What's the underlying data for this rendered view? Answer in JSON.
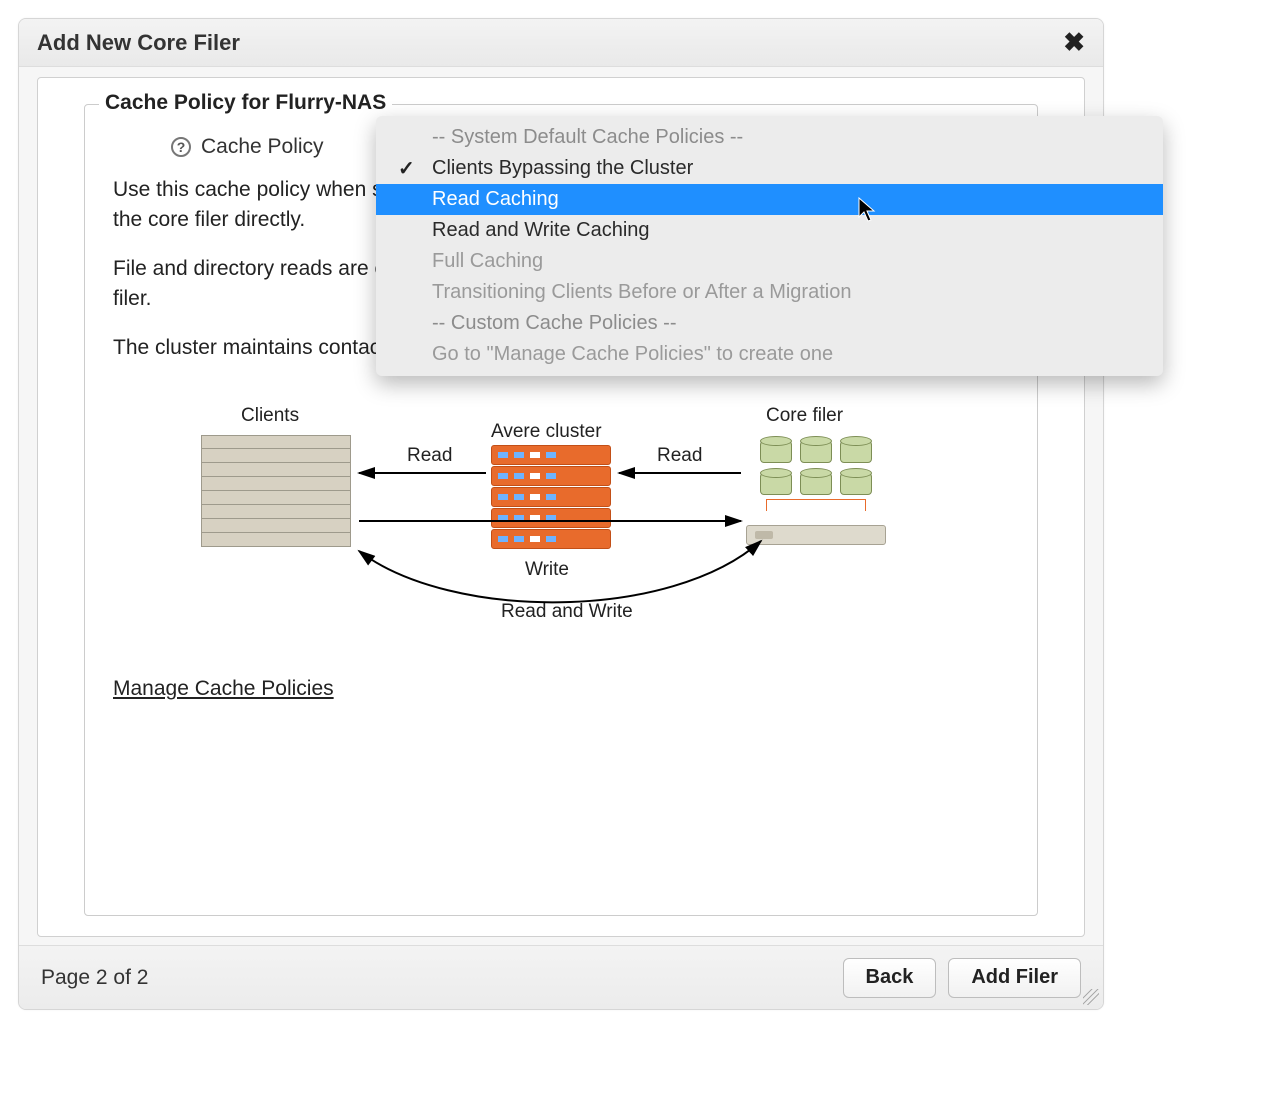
{
  "dialog": {
    "title": "Add New Core Filer",
    "page_indicator": "Page 2 of 2",
    "back_label": "Back",
    "add_label": "Add Filer"
  },
  "fieldset": {
    "legend": "Cache Policy for Flurry-NAS",
    "label": "Cache Policy",
    "help_glyph": "?"
  },
  "paragraphs": {
    "p1": "Use this cache policy when some clients are mounting the FXT cluster and others are mounting the core filer directly.",
    "p2": "File and directory reads are cached on the cluster. Writes, however, pass directly to the core filer.",
    "p3": "The cluster maintains contact with the core filer to maintain file system consistency."
  },
  "link": {
    "manage_label": "Manage Cache Policies"
  },
  "diagram": {
    "clients_label": "Clients",
    "cluster_label": "Avere cluster",
    "corefiler_label": "Core filer",
    "read_label": "Read",
    "write_label": "Write",
    "readwrite_label": "Read and Write",
    "client_slice_color": "#d7d1c2",
    "cluster_slice_color": "#e86b2c",
    "led_colors": [
      "#6fb3ff",
      "#6fb3ff",
      "#ffffff",
      "#6fb3ff"
    ],
    "db_color": "#c9d9a6"
  },
  "dropdown": {
    "items": [
      {
        "text": "-- System Default Cache Policies --",
        "kind": "header"
      },
      {
        "text": "Clients Bypassing the Cluster",
        "kind": "enabled",
        "selected": true
      },
      {
        "text": "Read Caching",
        "kind": "enabled",
        "highlighted": true
      },
      {
        "text": "Read and Write Caching",
        "kind": "enabled"
      },
      {
        "text": "Full Caching",
        "kind": "disabled"
      },
      {
        "text": "Transitioning Clients Before or After a Migration",
        "kind": "disabled"
      },
      {
        "text": "-- Custom Cache Policies --",
        "kind": "header"
      },
      {
        "text": "Go to \"Manage Cache Policies\" to create one",
        "kind": "disabled"
      }
    ],
    "highlight_bg": "#1f8fff"
  }
}
